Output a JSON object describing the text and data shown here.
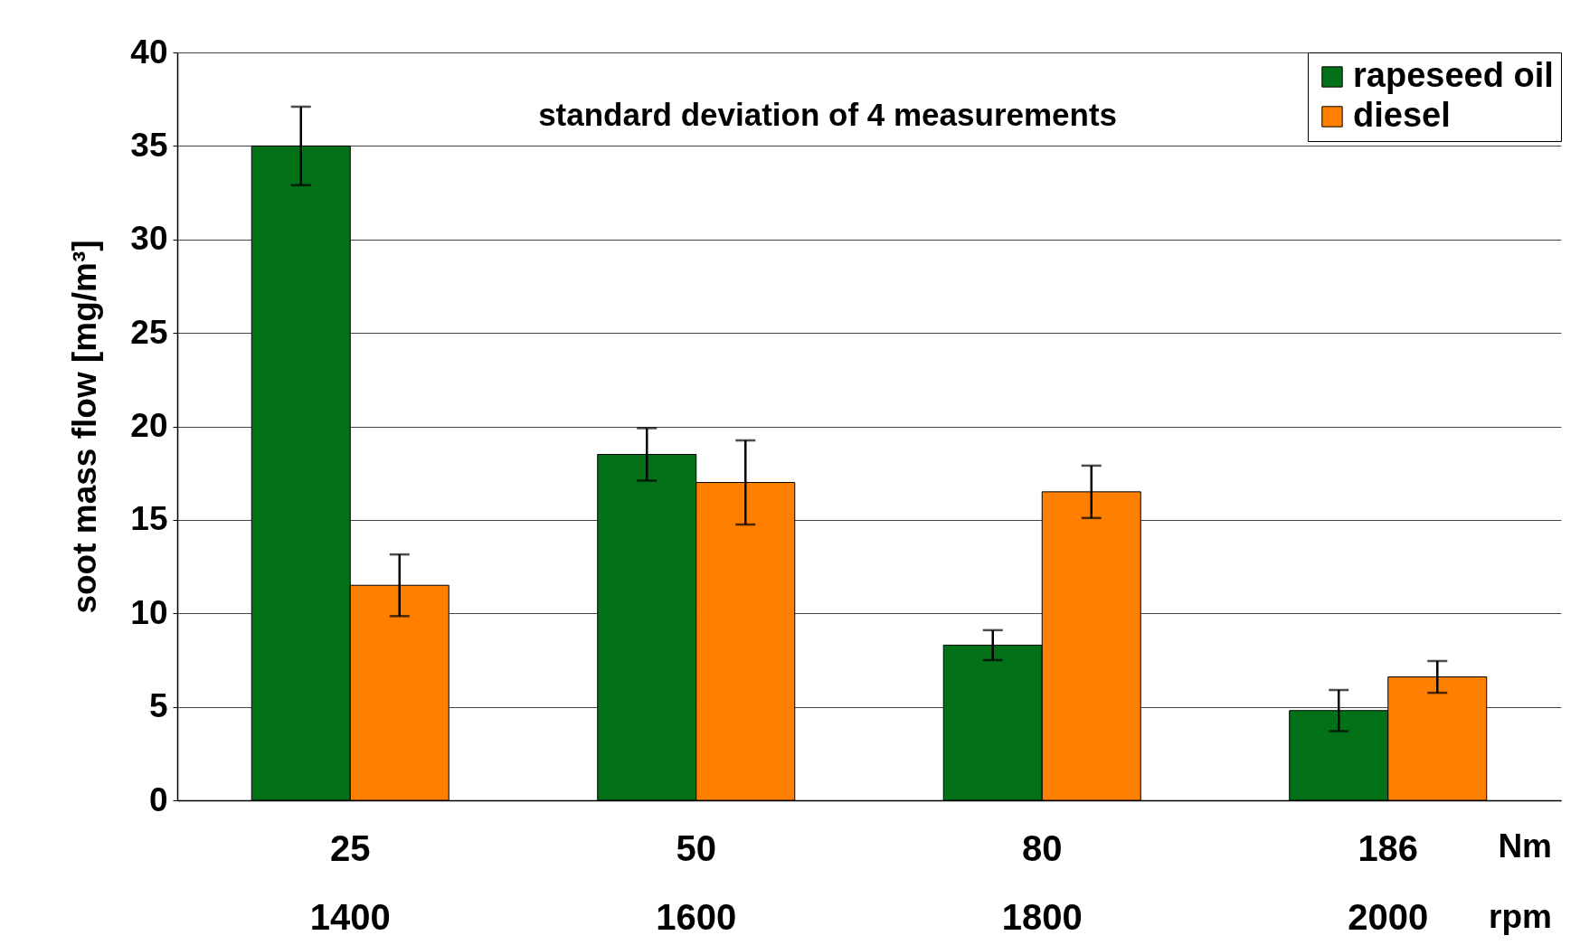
{
  "chart_data": {
    "type": "bar",
    "ylabel": "soot mass flow [mg/m³]",
    "categories": [
      "25\n1400",
      "50\n1600",
      "80\n1800",
      "186\n2000"
    ],
    "series": [
      {
        "name": "rapeseed oil",
        "color": "#037117",
        "values": [
          35.0,
          18.5,
          8.3,
          4.8
        ],
        "errors": [
          2.1,
          1.4,
          0.8,
          1.1
        ]
      },
      {
        "name": "diesel",
        "color": "#ff7f00",
        "values": [
          11.5,
          17.0,
          16.5,
          6.6
        ],
        "errors": [
          1.65,
          2.25,
          1.4,
          0.85
        ]
      }
    ],
    "ylim": [
      0,
      40
    ],
    "yticks": [
      0,
      5,
      10,
      15,
      20,
      25,
      30,
      35,
      40
    ],
    "grid": "y",
    "legend": "top right",
    "annotations": [
      "standard deviation of 4 measurements",
      "Nm",
      "rpm"
    ]
  }
}
